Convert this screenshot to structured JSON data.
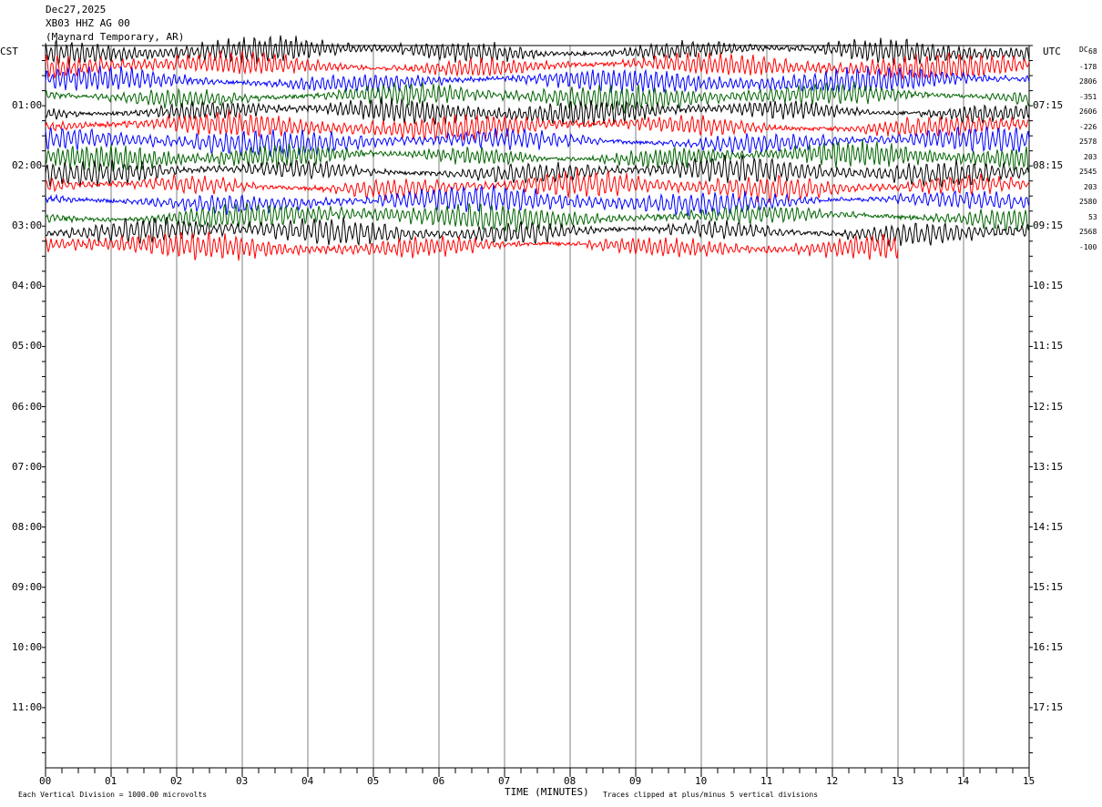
{
  "header": {
    "date": "Dec27,2025",
    "station": "XB03 HHZ AG 00",
    "location": "(Maynard Temporary, AR)"
  },
  "axes": {
    "left_label": "CST",
    "right_label": "UTC",
    "dc_label": "DC",
    "x_title": "TIME (MINUTES)",
    "x_ticks": [
      "00",
      "01",
      "02",
      "03",
      "04",
      "05",
      "06",
      "07",
      "08",
      "09",
      "10",
      "11",
      "12",
      "13",
      "14",
      "15"
    ],
    "left_hours": [
      "01:00",
      "02:00",
      "03:00",
      "04:00",
      "05:00",
      "06:00",
      "07:00",
      "08:00",
      "09:00",
      "10:00",
      "11:00"
    ],
    "right_hours": [
      "07:15",
      "08:15",
      "09:15",
      "10:15",
      "11:15",
      "12:15",
      "13:15",
      "14:15",
      "15:15",
      "16:15",
      "17:15"
    ]
  },
  "footer": {
    "scale": "Each Vertical Division = 1000.00 microvolts",
    "clip": "Traces clipped at plus/minus 5 vertical divisions"
  },
  "chart_data": {
    "type": "line",
    "title": "XB03 HHZ AG 00",
    "xlabel": "TIME (MINUTES)",
    "xlim": [
      0,
      15
    ],
    "trace_interval_minutes": 15,
    "hours_axis_left": [
      0,
      12
    ],
    "colors": [
      "#000000",
      "#ff0000",
      "#0000ff",
      "#006400"
    ],
    "dc_offsets": [
      "68",
      "-178",
      "2806",
      "-351",
      "2606",
      "-226",
      "2578",
      "203",
      "2545",
      "203",
      "2580",
      "53",
      "2568",
      "-100"
    ],
    "traces_filled": 14,
    "last_trace_end_minute": 13
  }
}
